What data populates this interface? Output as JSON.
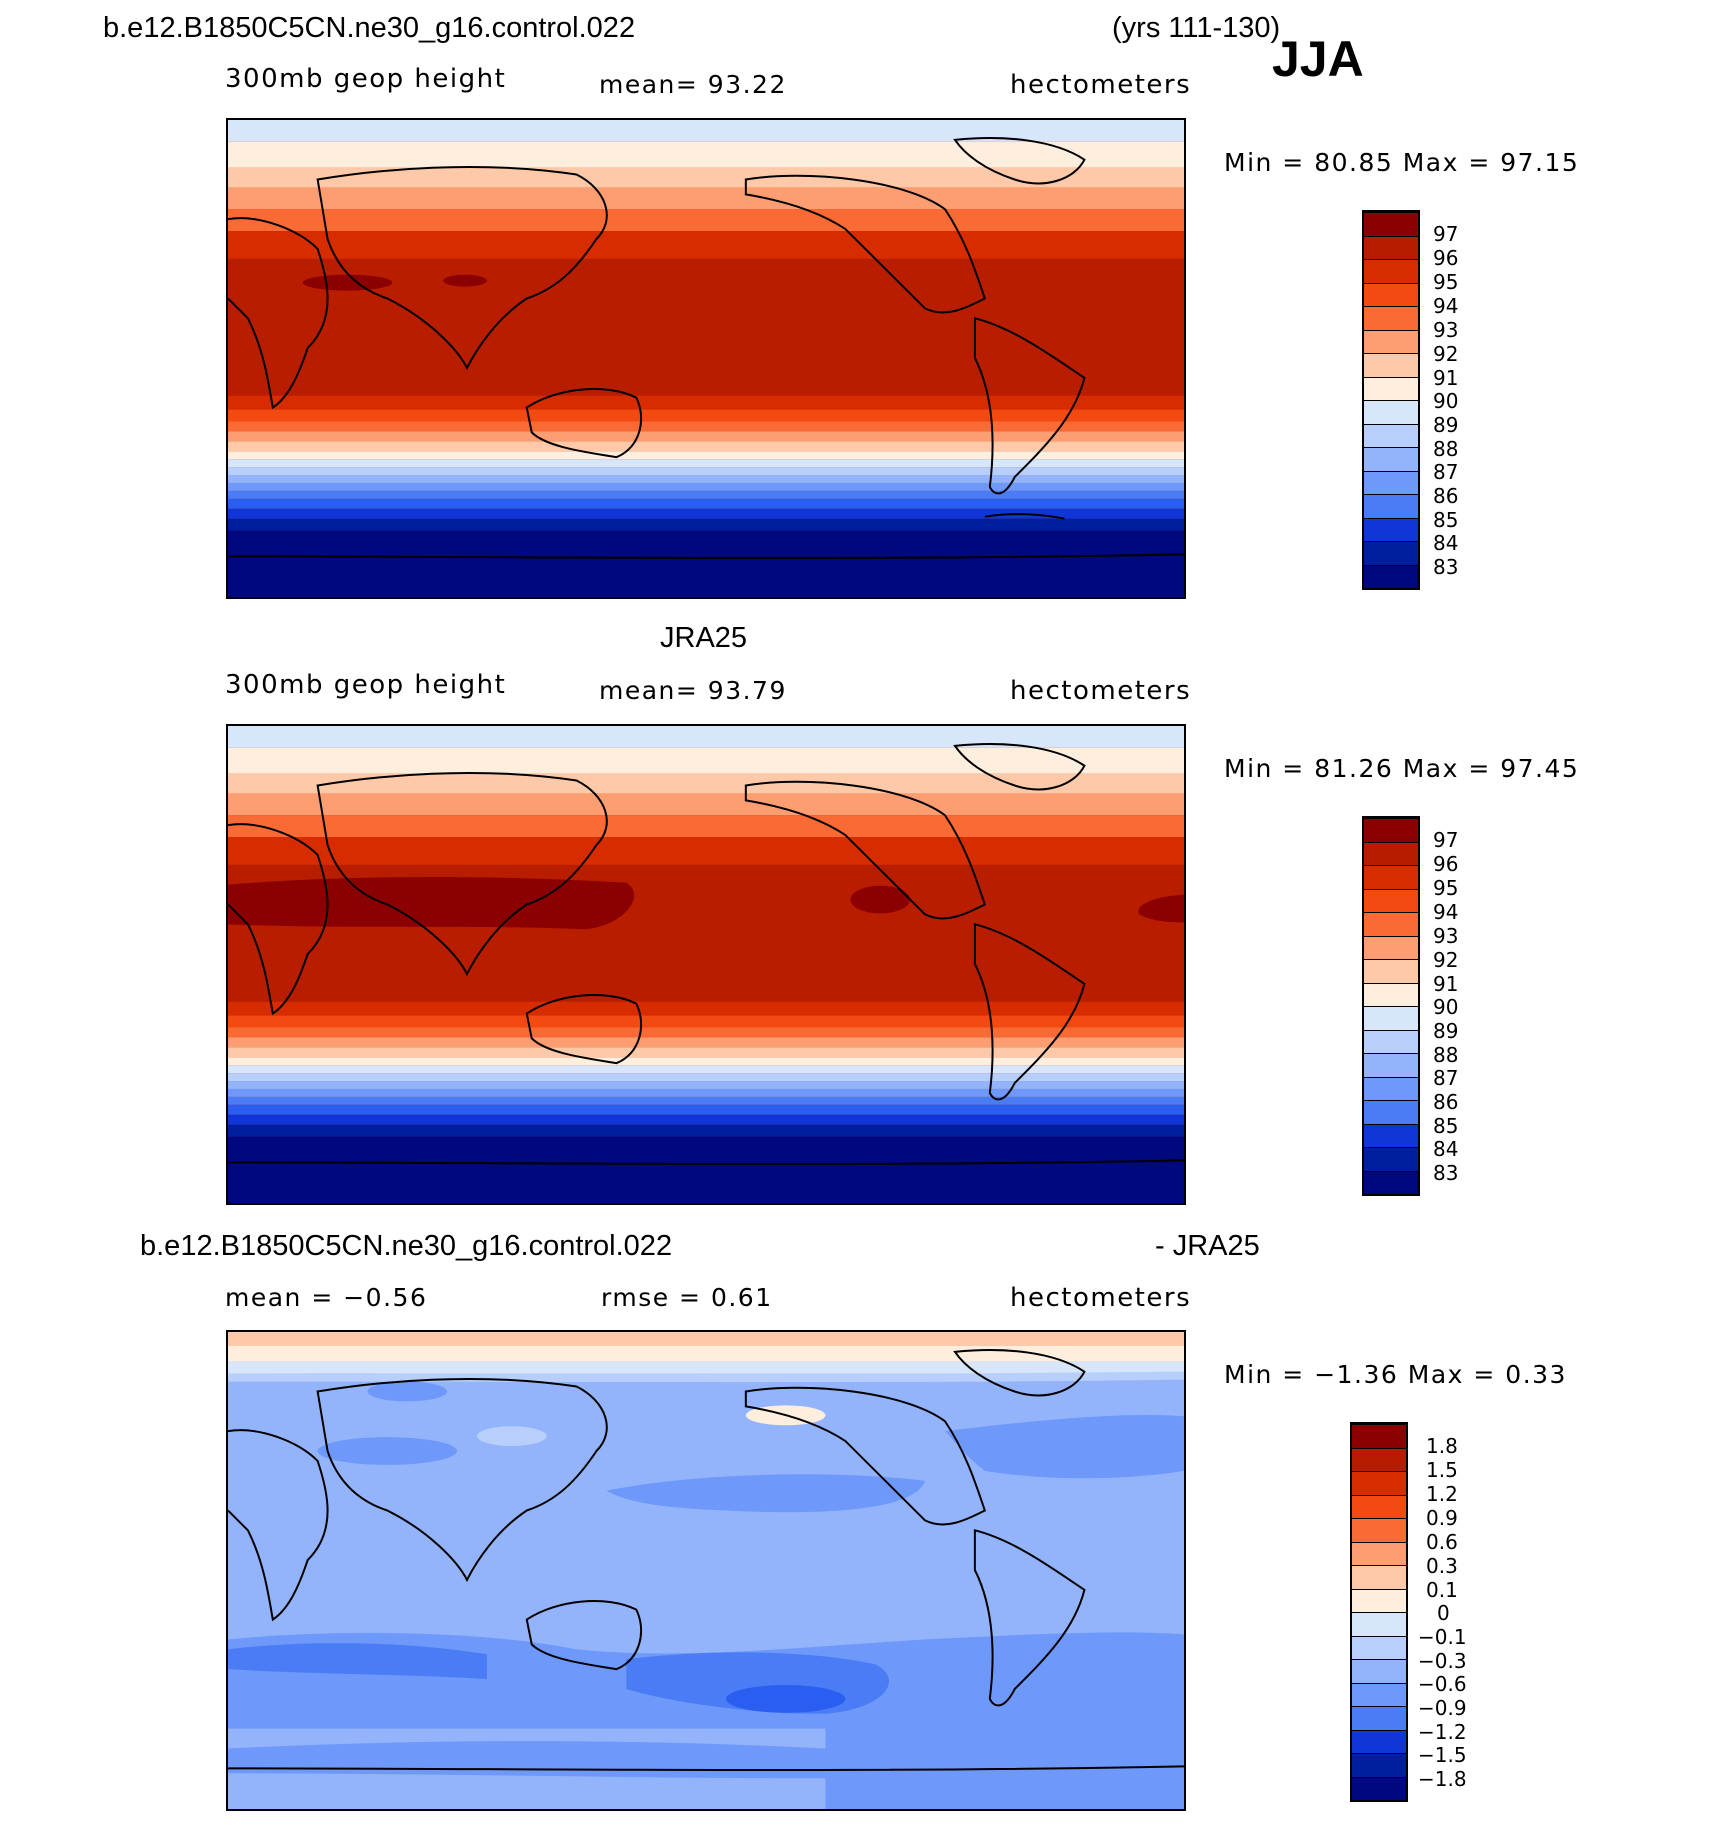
{
  "header": {
    "case_name": "b.e12.B1850C5CN.ne30_g16.control.022",
    "years": "(yrs 111-130)",
    "season": "JJA"
  },
  "panels": [
    {
      "title": "",
      "variable": "300mb geop height",
      "stat_left": "",
      "stat_mid": "mean=   93.22",
      "units": "hectometers",
      "minmax": "Min =   80.85 Max =   97.15"
    },
    {
      "title": "JRA25",
      "variable": "300mb geop height",
      "stat_left": "",
      "stat_mid": "mean=   93.79",
      "units": "hectometers",
      "minmax": "Min =   81.26 Max =   97.45"
    },
    {
      "title_left": "b.e12.B1850C5CN.ne30_g16.control.022",
      "title_right": "- JRA25",
      "variable": "",
      "stat_left": "mean =   −0.56",
      "stat_mid": "rmse =    0.61",
      "units": "hectometers",
      "minmax": "Min =   −1.36 Max =    0.33"
    }
  ],
  "colorbars": {
    "height_levels": [
      "97",
      "96",
      "95",
      "94",
      "93",
      "92",
      "91",
      "90",
      "89",
      "88",
      "87",
      "86",
      "85",
      "84",
      "83"
    ],
    "diff_levels": [
      "1.8",
      "1.5",
      "1.2",
      "0.9",
      "0.6",
      "0.3",
      "0.1",
      "0",
      "−0.1",
      "−0.3",
      "−0.6",
      "−0.9",
      "−1.2",
      "−1.5",
      "−1.8"
    ],
    "colors": [
      "#8b0000",
      "#b71c00",
      "#d72b00",
      "#f24a10",
      "#fa6a35",
      "#fc9d72",
      "#fdc9a8",
      "#fdeedd",
      "#d7e6fa",
      "#b7cffa",
      "#93b4fa",
      "#6e99fa",
      "#4a7df5",
      "#2a5ef0",
      "#1036d8",
      "#001f9e",
      "#00087e"
    ]
  }
}
